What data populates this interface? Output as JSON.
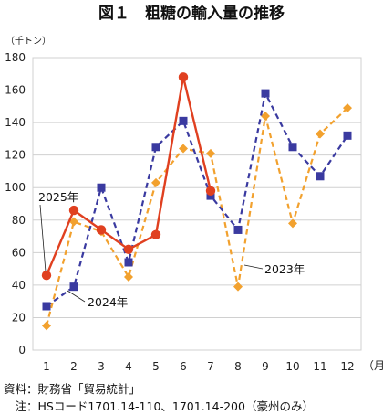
{
  "chart_data": {
    "type": "line",
    "title": "図１　粗糖の輸入量の推移",
    "ylabel": "（千トン）",
    "x_unit": "（月）",
    "categories": [
      "1",
      "2",
      "3",
      "4",
      "5",
      "6",
      "7",
      "8",
      "9",
      "10",
      "11",
      "12"
    ],
    "ylim": [
      0,
      180
    ],
    "yticks": [
      0,
      20,
      40,
      60,
      80,
      100,
      120,
      140,
      160,
      180
    ],
    "grid": true,
    "series": [
      {
        "name": "2023年",
        "color": "#f2a12e",
        "style": "dashed",
        "marker": "diamond",
        "values": [
          15,
          79,
          73,
          45,
          103,
          124,
          121,
          39,
          144,
          78,
          133,
          149
        ]
      },
      {
        "name": "2024年",
        "color": "#3a3aa0",
        "style": "dashed",
        "marker": "square",
        "values": [
          27,
          39,
          100,
          54,
          125,
          141,
          95,
          74,
          158,
          125,
          107,
          132
        ]
      },
      {
        "name": "2025年",
        "color": "#e04020",
        "style": "solid",
        "marker": "circle",
        "values": [
          46,
          86,
          74,
          62,
          71,
          168,
          98,
          null,
          null,
          null,
          null,
          null
        ]
      }
    ]
  },
  "notes": {
    "source": "資料：財務省「貿易統計」",
    "note": "　注：HSコード1701.14-110、1701.14-200（豪州のみ）"
  }
}
